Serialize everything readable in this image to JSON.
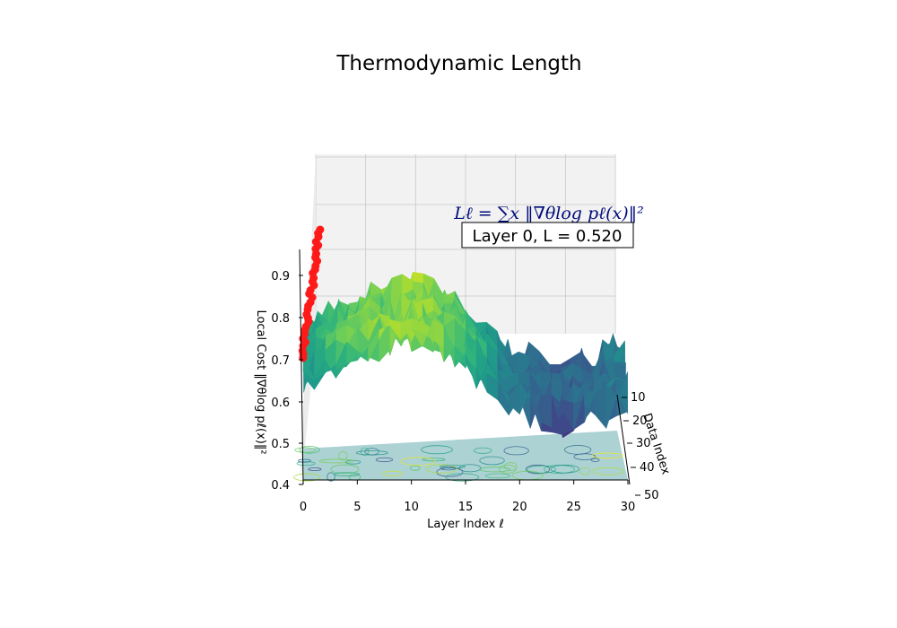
{
  "chart_data": {
    "type": "surface3d",
    "title": "Thermodynamic Length",
    "xlabel": "Layer Index ℓ",
    "ylabel": "Data Index",
    "zlabel": "Local Cost ‖∇θlog pℓ(x)‖²",
    "xlim": [
      0,
      30
    ],
    "ylim": [
      0,
      50
    ],
    "zlim": [
      0.4,
      0.95
    ],
    "x_ticks": [
      "0",
      "5",
      "10",
      "15",
      "20",
      "25",
      "30"
    ],
    "y_ticks": [
      "10",
      "20",
      "30",
      "40",
      "50"
    ],
    "z_ticks": [
      "0.4",
      "0.5",
      "0.6",
      "0.7",
      "0.8",
      "0.9"
    ],
    "colormap": "viridis",
    "grid": true,
    "surface_profile": {
      "layer": [
        0,
        3,
        6,
        9,
        12,
        15,
        18,
        21,
        24,
        27,
        30
      ],
      "mean_cost": [
        0.66,
        0.72,
        0.75,
        0.77,
        0.76,
        0.72,
        0.63,
        0.58,
        0.56,
        0.58,
        0.62
      ]
    },
    "highlight_series": {
      "name": "Layer 0",
      "color": "#ff1a1a",
      "layer": 0,
      "data_index": [
        0,
        5,
        10,
        15,
        20,
        25,
        30,
        35,
        40,
        45,
        50
      ],
      "cost": [
        0.72,
        0.74,
        0.76,
        0.78,
        0.8,
        0.82,
        0.84,
        0.86,
        0.89,
        0.92,
        0.95
      ]
    },
    "annotations": {
      "formula": "Lℓ = ∑x ‖∇θlog pℓ(x)‖²",
      "status": "Layer 0, L = 0.520"
    }
  }
}
